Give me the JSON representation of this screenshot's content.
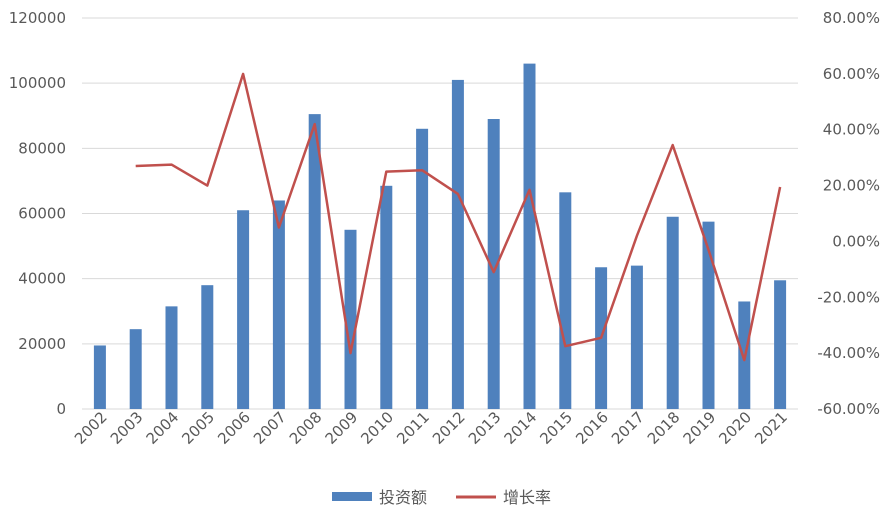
{
  "chart_data": {
    "type": "bar",
    "categories": [
      "2002",
      "2003",
      "2004",
      "2005",
      "2006",
      "2007",
      "2008",
      "2009",
      "2010",
      "2011",
      "2012",
      "2013",
      "2014",
      "2015",
      "2016",
      "2017",
      "2018",
      "2019",
      "2020",
      "2021"
    ],
    "series": [
      {
        "name": "投资额",
        "type": "bar",
        "axis": "left",
        "color": "#4f81bd",
        "values": [
          19500,
          24500,
          31500,
          38000,
          61000,
          64000,
          90500,
          55000,
          68500,
          86000,
          101000,
          89000,
          106000,
          66500,
          43500,
          44000,
          59000,
          57500,
          33000,
          39500
        ]
      },
      {
        "name": "增长率",
        "type": "line",
        "axis": "right",
        "color": "#c0504d",
        "values": [
          null,
          0.27,
          0.275,
          0.2,
          0.6,
          0.05,
          0.42,
          -0.4,
          0.25,
          0.255,
          0.17,
          -0.11,
          0.185,
          -0.375,
          -0.345,
          0.02,
          0.345,
          -0.03,
          -0.425,
          0.195
        ]
      }
    ],
    "y_left": {
      "ylim": [
        0,
        120000
      ],
      "ticks": [
        "0",
        "20000",
        "40000",
        "60000",
        "80000",
        "100000",
        "120000"
      ]
    },
    "y_right": {
      "ylim": [
        -0.6,
        0.8
      ],
      "ticks": [
        "-60.00%",
        "-40.00%",
        "-20.00%",
        "0.00%",
        "20.00%",
        "40.00%",
        "60.00%",
        "80.00%"
      ]
    },
    "grid": true,
    "legend_position": "bottom",
    "title": "",
    "xlabel": "",
    "ylabel": ""
  }
}
